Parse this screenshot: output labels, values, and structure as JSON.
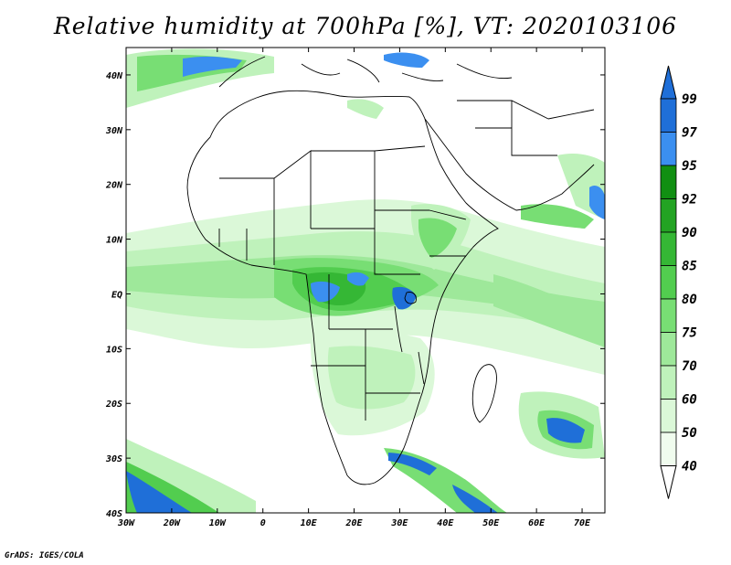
{
  "title": "Relative humidity at 700hPa [%], VT: 2020103106",
  "credit": "GrADS: IGES/COLA",
  "map": {
    "lon_range": [
      -30,
      75
    ],
    "lat_range": [
      -40,
      45
    ],
    "x_ticks": [
      "30W",
      "20W",
      "10W",
      "0",
      "10E",
      "20E",
      "30E",
      "40E",
      "50E",
      "60E",
      "70E"
    ],
    "x_tick_values": [
      -30,
      -20,
      -10,
      0,
      10,
      20,
      30,
      40,
      50,
      60,
      70
    ],
    "y_ticks": [
      "40N",
      "30N",
      "20N",
      "10N",
      "EQ",
      "10S",
      "20S",
      "30S",
      "40S"
    ],
    "y_tick_values": [
      40,
      30,
      20,
      10,
      0,
      -10,
      -20,
      -30,
      -40
    ],
    "coastline_color": "#000000"
  },
  "colorbar": {
    "labels": [
      "99",
      "97",
      "95",
      "92",
      "90",
      "85",
      "80",
      "75",
      "70",
      "60",
      "50",
      "40"
    ],
    "levels": [
      {
        "range": "97-99",
        "color": "#1f6fd8"
      },
      {
        "range": "95-97",
        "color": "#3b8ff0"
      },
      {
        "range": "92-95",
        "color": "#118f12"
      },
      {
        "range": "90-92",
        "color": "#23a323"
      },
      {
        "range": "85-90",
        "color": "#35b735"
      },
      {
        "range": "80-85",
        "color": "#52cd4f"
      },
      {
        "range": "75-80",
        "color": "#78de74"
      },
      {
        "range": "70-75",
        "color": "#9ee89a"
      },
      {
        "range": "60-70",
        "color": "#bff2bb"
      },
      {
        "range": "50-60",
        "color": "#dbf8d8"
      },
      {
        "range": "40-50",
        "color": "#f0fcee"
      }
    ],
    "top_arrow_color": "#1f6fd8",
    "bottom_arrow_color": "#ffffff"
  }
}
